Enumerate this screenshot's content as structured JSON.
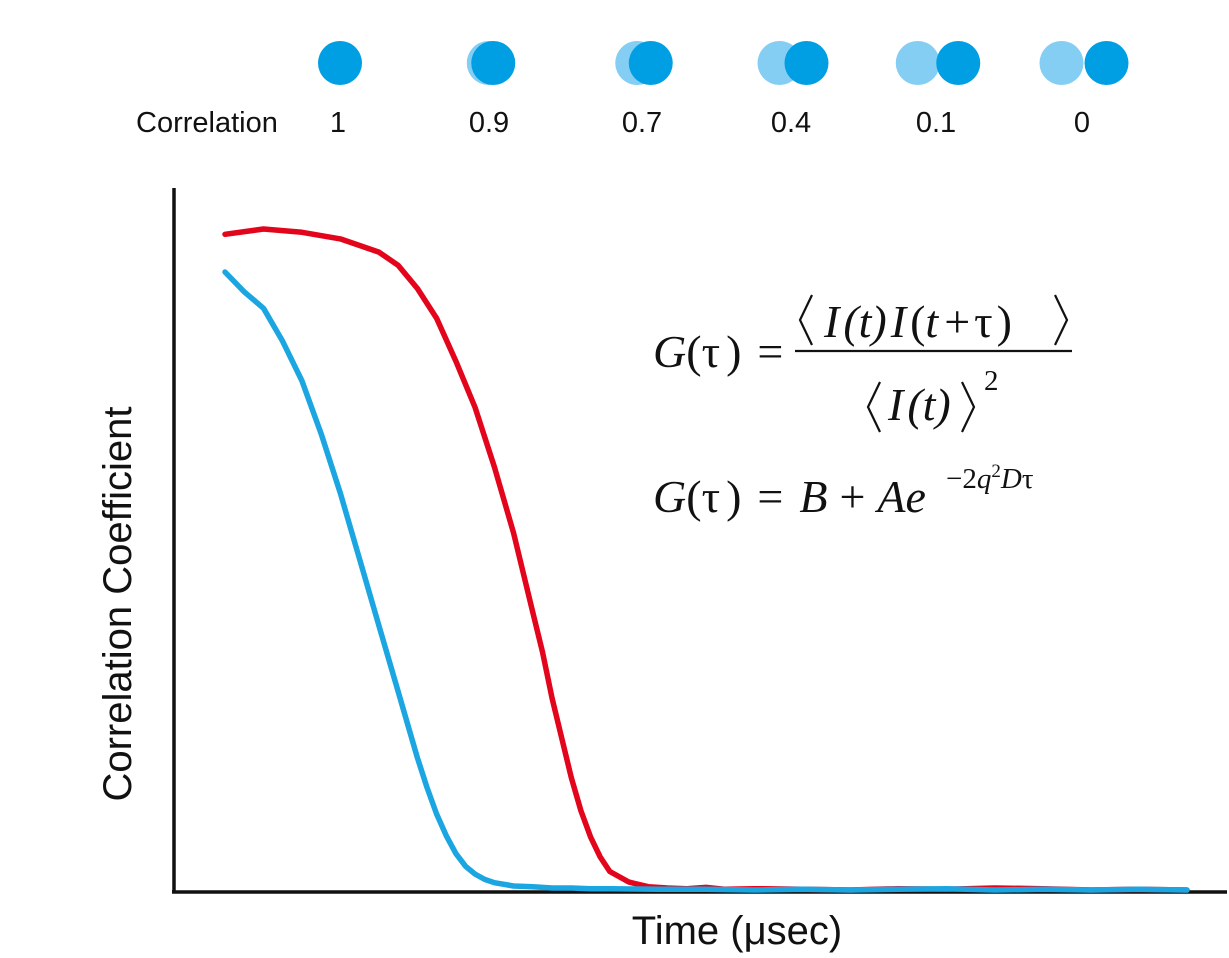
{
  "correlation_header": {
    "label": "Correlation",
    "items": [
      {
        "value": "1",
        "overlap": 1.0
      },
      {
        "value": "0.9",
        "overlap": 0.9
      },
      {
        "value": "0.7",
        "overlap": 0.7
      },
      {
        "value": "0.4",
        "overlap": 0.4
      },
      {
        "value": "0.1",
        "overlap": 0.1
      },
      {
        "value": "0",
        "overlap": 0.0
      }
    ],
    "colors": {
      "light": "#84cdf3",
      "dark": "#009ee3"
    }
  },
  "equations": {
    "eq1": {
      "lhs_G": "G",
      "lhs_open": "(",
      "tau": "τ",
      "lhs_close": ")",
      "equals": "=",
      "numerator": {
        "I1": "I",
        "t1": "(t)",
        "I2": "I",
        "t2_open": "(",
        "t2": "t",
        "plus": "+",
        "tau": "τ",
        "t2_close": ")"
      },
      "denominator": {
        "I": "I",
        "t": "(t)",
        "exponent": "2"
      }
    },
    "eq2": {
      "lhs_G": "G",
      "lhs_open": "(",
      "tau": "τ",
      "lhs_close": ")",
      "equals": "=",
      "B": "B",
      "plus": "+",
      "A": "A",
      "e": "e",
      "exp_coeff": "−2",
      "exp_q": "q",
      "exp_sq": "2",
      "exp_D": "D",
      "exp_tau": "τ"
    }
  },
  "chart_data": {
    "type": "line",
    "xlabel": "Time (μsec)",
    "ylabel": "Correlation Coefficient",
    "xlim": [
      0,
      100
    ],
    "ylim": [
      0,
      1
    ],
    "grid": false,
    "x_ticks": false,
    "y_ticks": false,
    "series": [
      {
        "color": "#e3051b",
        "x": [
          0,
          4,
          8,
          12,
          16,
          18,
          20,
          22,
          24,
          26,
          28,
          30,
          32,
          33,
          34,
          35,
          36,
          37,
          38,
          39,
          40,
          42,
          44,
          46,
          48,
          50,
          52,
          55,
          60,
          65,
          70,
          75,
          80,
          85,
          90,
          95,
          100
        ],
        "y": [
          0.992,
          1.0,
          0.995,
          0.985,
          0.965,
          0.945,
          0.91,
          0.865,
          0.8,
          0.73,
          0.64,
          0.54,
          0.42,
          0.36,
          0.29,
          0.23,
          0.17,
          0.12,
          0.08,
          0.05,
          0.028,
          0.012,
          0.005,
          0.003,
          0.002,
          0.004,
          0.001,
          0.002,
          0.001,
          0.0,
          0.002,
          0.001,
          0.003,
          0.002,
          0.0,
          0.001,
          0.0
        ]
      },
      {
        "color": "#1ba6e2",
        "x": [
          0,
          2,
          4,
          6,
          8,
          10,
          12,
          14,
          16,
          18,
          19,
          20,
          21,
          22,
          23,
          24,
          25,
          26,
          27,
          28,
          30,
          32,
          34,
          36,
          38,
          40,
          45,
          50,
          55,
          60,
          65,
          70,
          75,
          80,
          85,
          90,
          95,
          100
        ],
        "y": [
          0.935,
          0.905,
          0.88,
          0.83,
          0.77,
          0.69,
          0.6,
          0.5,
          0.4,
          0.3,
          0.25,
          0.2,
          0.155,
          0.115,
          0.082,
          0.055,
          0.036,
          0.024,
          0.016,
          0.011,
          0.006,
          0.005,
          0.003,
          0.003,
          0.002,
          0.002,
          0.001,
          0.001,
          0.0,
          0.001,
          0.0,
          0.001,
          0.002,
          0.0,
          0.001,
          0.0,
          0.001,
          0.0
        ]
      }
    ]
  }
}
